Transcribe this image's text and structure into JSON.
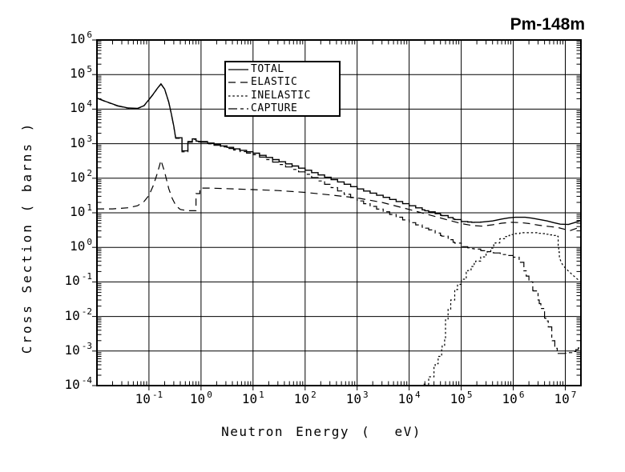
{
  "title": "Pm-148m",
  "axes": {
    "x": {
      "label": "Neutron Energy (  eV)",
      "tick_base": "10",
      "tick_exponents": [
        -1,
        0,
        1,
        2,
        3,
        4,
        5,
        6,
        7
      ]
    },
    "y": {
      "label": "Cross Section ( barns )",
      "tick_base": "10",
      "tick_exponents": [
        6,
        5,
        4,
        3,
        2,
        1,
        0,
        -1,
        -2,
        -3,
        -4
      ]
    }
  },
  "colors": {
    "foreground": "#000000",
    "background": "#ffffff"
  },
  "chart_data": {
    "type": "line",
    "x_scale": "log",
    "y_scale": "log",
    "x_range_ev": [
      0.01,
      20000000
    ],
    "y_range_barns": [
      0.0001,
      1000000
    ],
    "grid": "major",
    "legend_position": "top-inside",
    "series": [
      {
        "name": "TOTAL",
        "dash": [],
        "width": 1.4,
        "staircase": [
          0.95,
          250000
        ],
        "points": [
          [
            0.01,
            21000
          ],
          [
            0.015,
            16500
          ],
          [
            0.025,
            12500
          ],
          [
            0.04,
            10800
          ],
          [
            0.06,
            10500
          ],
          [
            0.08,
            12500
          ],
          [
            0.1,
            19000
          ],
          [
            0.12,
            27000
          ],
          [
            0.145,
            40000
          ],
          [
            0.17,
            54000
          ],
          [
            0.2,
            38000
          ],
          [
            0.24,
            16000
          ],
          [
            0.27,
            7000
          ],
          [
            0.3,
            3200
          ],
          [
            0.325,
            1480
          ],
          [
            0.43,
            1480
          ],
          [
            0.43,
            620
          ],
          [
            0.56,
            620
          ],
          [
            0.56,
            1150
          ],
          [
            0.68,
            1150
          ],
          [
            0.68,
            1380
          ],
          [
            0.8,
            1380
          ],
          [
            0.8,
            1200
          ],
          [
            1.0,
            1150
          ],
          [
            10,
            530
          ],
          [
            100,
            170
          ],
          [
            1000,
            49
          ],
          [
            10000,
            16
          ],
          [
            20000,
            11.5
          ],
          [
            40000,
            8.5
          ],
          [
            70000,
            6.6
          ],
          [
            100000,
            5.6
          ],
          [
            160000,
            5.3
          ],
          [
            250000,
            5.4
          ],
          [
            400000,
            5.8
          ],
          [
            600000,
            6.6
          ],
          [
            800000,
            7.1
          ],
          [
            1100000,
            7.4
          ],
          [
            1700000,
            7.4
          ],
          [
            2300000,
            7.0
          ],
          [
            3000000,
            6.5
          ],
          [
            4500000,
            5.8
          ],
          [
            6000000,
            5.2
          ],
          [
            8000000,
            4.7
          ],
          [
            11500000,
            4.6
          ],
          [
            15000000,
            5.2
          ],
          [
            20000000,
            6.0
          ]
        ]
      },
      {
        "name": "ELASTIC",
        "dash": [
          9,
          6
        ],
        "width": 1.2,
        "staircase": null,
        "points": [
          [
            0.01,
            13
          ],
          [
            0.02,
            13
          ],
          [
            0.04,
            14
          ],
          [
            0.06,
            16
          ],
          [
            0.08,
            21
          ],
          [
            0.1,
            32
          ],
          [
            0.12,
            60
          ],
          [
            0.145,
            140
          ],
          [
            0.17,
            330
          ],
          [
            0.2,
            150
          ],
          [
            0.24,
            50
          ],
          [
            0.28,
            26
          ],
          [
            0.33,
            16
          ],
          [
            0.4,
            12.5
          ],
          [
            0.55,
            11.5
          ],
          [
            0.8,
            11.5
          ],
          [
            0.8,
            36
          ],
          [
            0.95,
            36
          ],
          [
            0.95,
            52
          ],
          [
            1.5,
            52
          ],
          [
            3,
            50
          ],
          [
            10,
            47
          ],
          [
            30,
            44
          ],
          [
            100,
            39
          ],
          [
            300,
            33
          ],
          [
            1000,
            27
          ],
          [
            3000,
            20
          ],
          [
            10000,
            12.5
          ],
          [
            30000,
            8
          ],
          [
            60000,
            6
          ],
          [
            100000,
            4.9
          ],
          [
            160000,
            4.3
          ],
          [
            250000,
            4.1
          ],
          [
            400000,
            4.5
          ],
          [
            600000,
            5.0
          ],
          [
            900000,
            5.3
          ],
          [
            1400000,
            5.2
          ],
          [
            2000000,
            4.9
          ],
          [
            3000000,
            4.4
          ],
          [
            5000000,
            4.0
          ],
          [
            7000000,
            3.8
          ],
          [
            10000000,
            3.3
          ],
          [
            12000000,
            3.0
          ],
          [
            16000000,
            3.5
          ],
          [
            20000000,
            3.9
          ]
        ]
      },
      {
        "name": "INELASTIC",
        "dash": [
          2.5,
          2.8
        ],
        "width": 1.2,
        "staircase": [
          17000,
          7800000
        ],
        "points": [
          [
            19000,
            0.00011
          ],
          [
            24000,
            0.00018
          ],
          [
            30000,
            0.00035
          ],
          [
            36000,
            0.0007
          ],
          [
            43000,
            0.0014
          ],
          [
            48000,
            0.0022
          ],
          [
            50000,
            0.008
          ],
          [
            56000,
            0.016
          ],
          [
            63000,
            0.03
          ],
          [
            75000,
            0.06
          ],
          [
            85000,
            0.085
          ],
          [
            100000,
            0.12
          ],
          [
            125000,
            0.19
          ],
          [
            155000,
            0.28
          ],
          [
            190000,
            0.4
          ],
          [
            240000,
            0.53
          ],
          [
            300000,
            0.7
          ],
          [
            370000,
            0.95
          ],
          [
            450000,
            1.35
          ],
          [
            550000,
            1.75
          ],
          [
            680000,
            2.05
          ],
          [
            850000,
            2.35
          ],
          [
            1050000,
            2.5
          ],
          [
            1500000,
            2.65
          ],
          [
            2500000,
            2.65
          ],
          [
            3500000,
            2.5
          ],
          [
            5000000,
            2.3
          ],
          [
            6500000,
            2.1
          ],
          [
            7300000,
            1.1
          ],
          [
            7700000,
            0.5
          ],
          [
            8200000,
            0.4
          ],
          [
            9000000,
            0.3
          ],
          [
            11000000,
            0.22
          ],
          [
            14500000,
            0.15
          ],
          [
            19000000,
            0.105
          ]
        ]
      },
      {
        "name": "CAPTURE",
        "dash": [
          11,
          4,
          4,
          4
        ],
        "width": 1.2,
        "staircase": [
          0.95,
          21000000
        ],
        "points": [
          [
            0.01,
            20700
          ],
          [
            0.015,
            16200
          ],
          [
            0.025,
            12300
          ],
          [
            0.04,
            10600
          ],
          [
            0.06,
            10300
          ],
          [
            0.08,
            12300
          ],
          [
            0.1,
            18700
          ],
          [
            0.12,
            26500
          ],
          [
            0.145,
            39300
          ],
          [
            0.17,
            53000
          ],
          [
            0.2,
            37300
          ],
          [
            0.24,
            15700
          ],
          [
            0.27,
            6800
          ],
          [
            0.3,
            3100
          ],
          [
            0.325,
            1430
          ],
          [
            0.43,
            1430
          ],
          [
            0.43,
            580
          ],
          [
            0.56,
            580
          ],
          [
            0.56,
            1100
          ],
          [
            0.68,
            1100
          ],
          [
            0.68,
            1330
          ],
          [
            0.8,
            1330
          ],
          [
            0.8,
            1150
          ],
          [
            1.0,
            1100
          ],
          [
            10,
            480
          ],
          [
            100,
            130
          ],
          [
            1000,
            22
          ],
          [
            10000,
            5.2
          ],
          [
            20000,
            3.6
          ],
          [
            40000,
            2.2
          ],
          [
            70000,
            1.4
          ],
          [
            100000,
            1.05
          ],
          [
            160000,
            0.92
          ],
          [
            250000,
            0.8
          ],
          [
            400000,
            0.7
          ],
          [
            630000,
            0.62
          ],
          [
            1000000,
            0.52
          ],
          [
            1300000,
            0.4
          ],
          [
            1600000,
            0.21
          ],
          [
            2000000,
            0.1
          ],
          [
            2400000,
            0.055
          ],
          [
            3000000,
            0.03
          ],
          [
            3400000,
            0.017
          ],
          [
            4000000,
            0.009
          ],
          [
            4700000,
            0.005
          ],
          [
            5500000,
            0.0022
          ],
          [
            6300000,
            0.0012
          ],
          [
            7000000,
            0.00085
          ],
          [
            9000000,
            0.00085
          ],
          [
            12000000,
            0.0009
          ],
          [
            16000000,
            0.0011
          ],
          [
            20000000,
            0.0014
          ]
        ]
      }
    ]
  }
}
